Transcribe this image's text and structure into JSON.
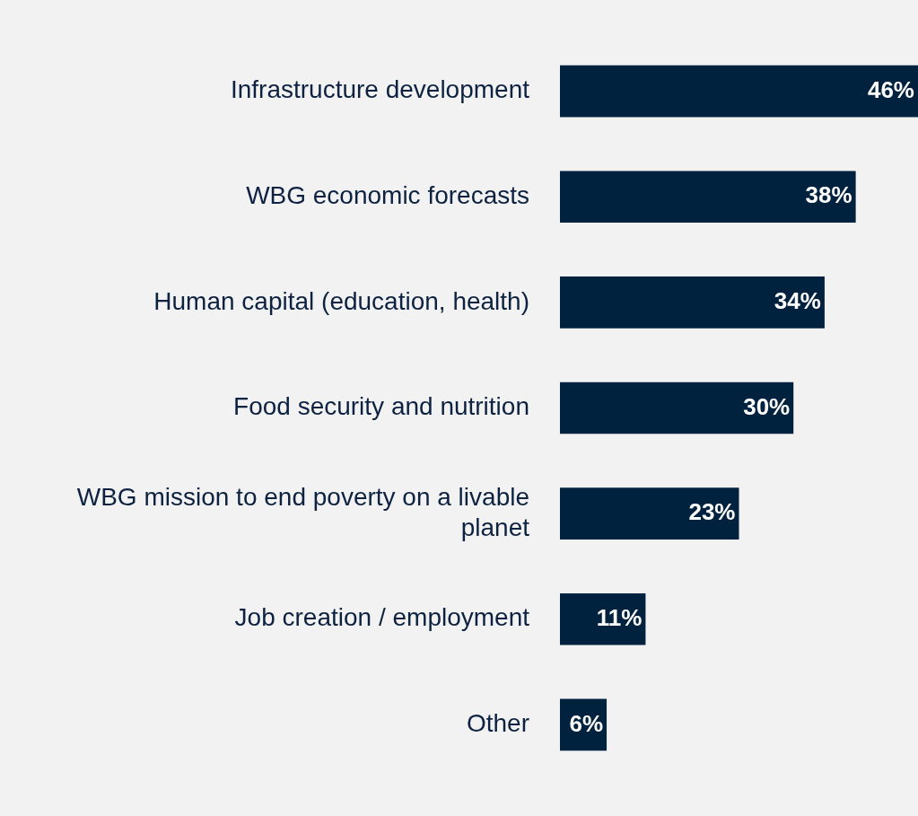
{
  "chart_data": {
    "type": "bar",
    "orientation": "horizontal",
    "categories": [
      "Infrastructure development",
      "WBG economic forecasts",
      "Human capital (education, health)",
      "Food security and nutrition",
      "WBG mission to end poverty on a livable planet",
      "Job creation / employment",
      "Other"
    ],
    "values": [
      46,
      38,
      34,
      30,
      23,
      11,
      6
    ],
    "value_labels": [
      "46%",
      "38%",
      "34%",
      "30%",
      "23%",
      "11%",
      "6%"
    ],
    "color": "#00223f",
    "xlim": [
      0,
      46
    ],
    "legend": false
  }
}
